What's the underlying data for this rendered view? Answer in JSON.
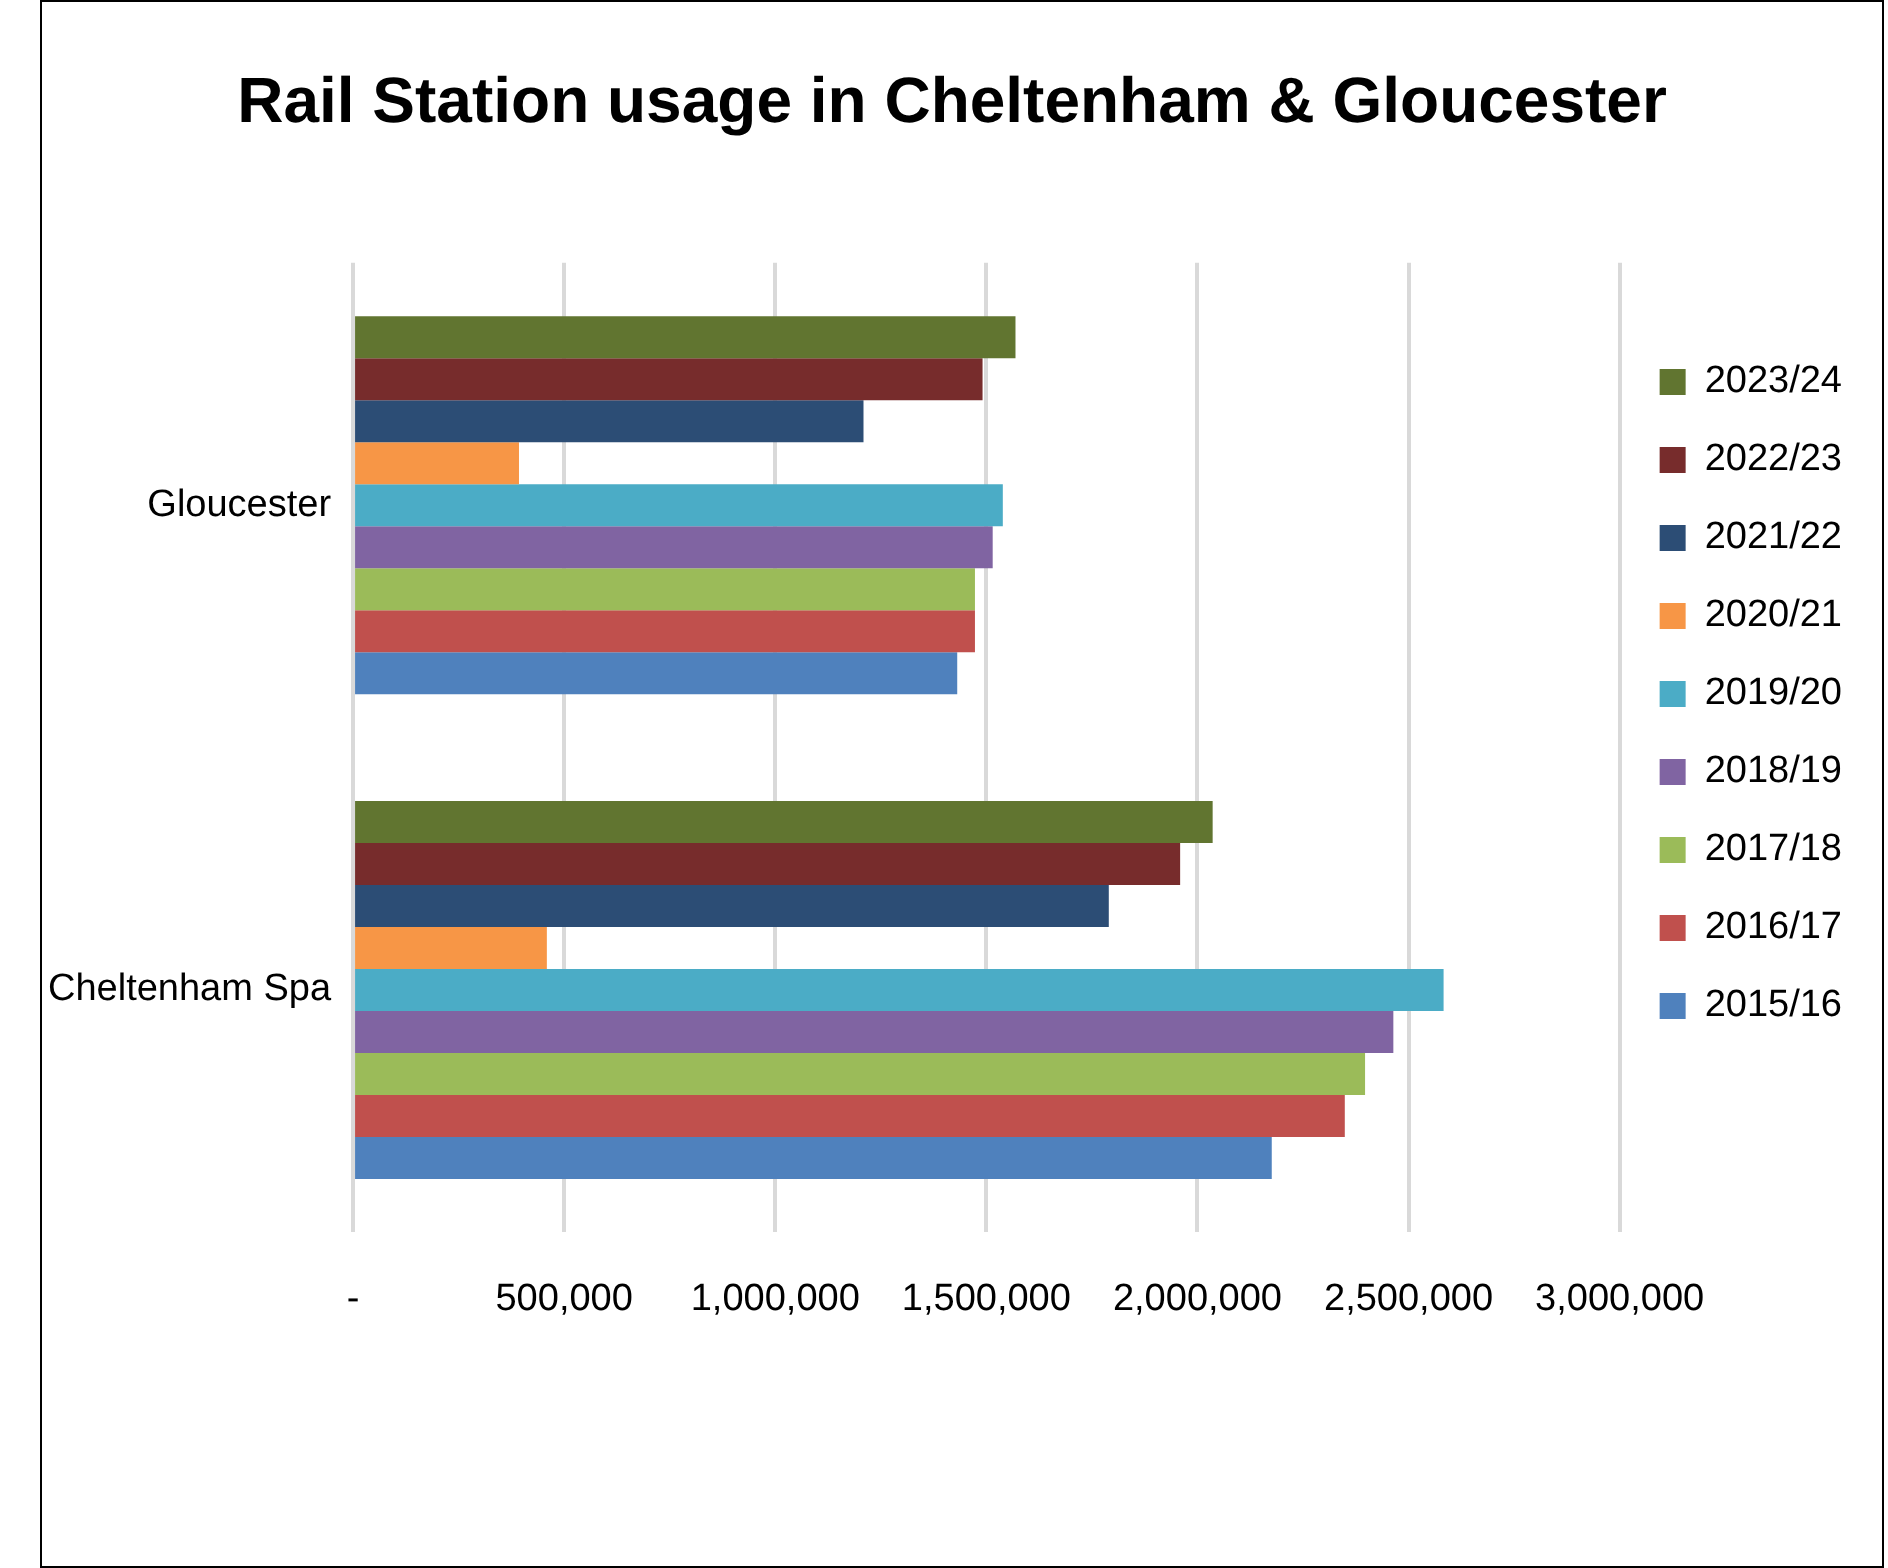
{
  "chart_data": {
    "type": "bar",
    "orientation": "horizontal",
    "title": "Rail Station usage in Cheltenham & Gloucester",
    "categories": [
      "Gloucester",
      "Cheltenham Spa"
    ],
    "series": [
      {
        "name": "2023/24",
        "color": "#617530",
        "values": [
          1569000,
          2036000
        ]
      },
      {
        "name": "2022/23",
        "color": "#772c2c",
        "values": [
          1491000,
          1959000
        ]
      },
      {
        "name": "2021/22",
        "color": "#2c4d75",
        "values": [
          1209000,
          1790000
        ]
      },
      {
        "name": "2020/21",
        "color": "#f79646",
        "values": [
          393000,
          459000
        ]
      },
      {
        "name": "2019/20",
        "color": "#4bacc6",
        "values": [
          1539000,
          2583000
        ]
      },
      {
        "name": "2018/19",
        "color": "#8064a2",
        "values": [
          1515000,
          2464000
        ]
      },
      {
        "name": "2017/18",
        "color": "#9bbb59",
        "values": [
          1473000,
          2397000
        ]
      },
      {
        "name": "2016/17",
        "color": "#c0504d",
        "values": [
          1473000,
          2349000
        ]
      },
      {
        "name": "2015/16",
        "color": "#4f81bd",
        "values": [
          1431000,
          2176000
        ]
      }
    ],
    "xlim": [
      0,
      3000000
    ],
    "xticks": [
      {
        "value": 0,
        "label": "-"
      },
      {
        "value": 500000,
        "label": "500,000"
      },
      {
        "value": 1000000,
        "label": "1,000,000"
      },
      {
        "value": 1500000,
        "label": "1,500,000"
      },
      {
        "value": 2000000,
        "label": "2,000,000"
      },
      {
        "value": 2500000,
        "label": "2,500,000"
      },
      {
        "value": 3000000,
        "label": "3,000,000"
      }
    ],
    "grid": "x",
    "legend": "right"
  }
}
